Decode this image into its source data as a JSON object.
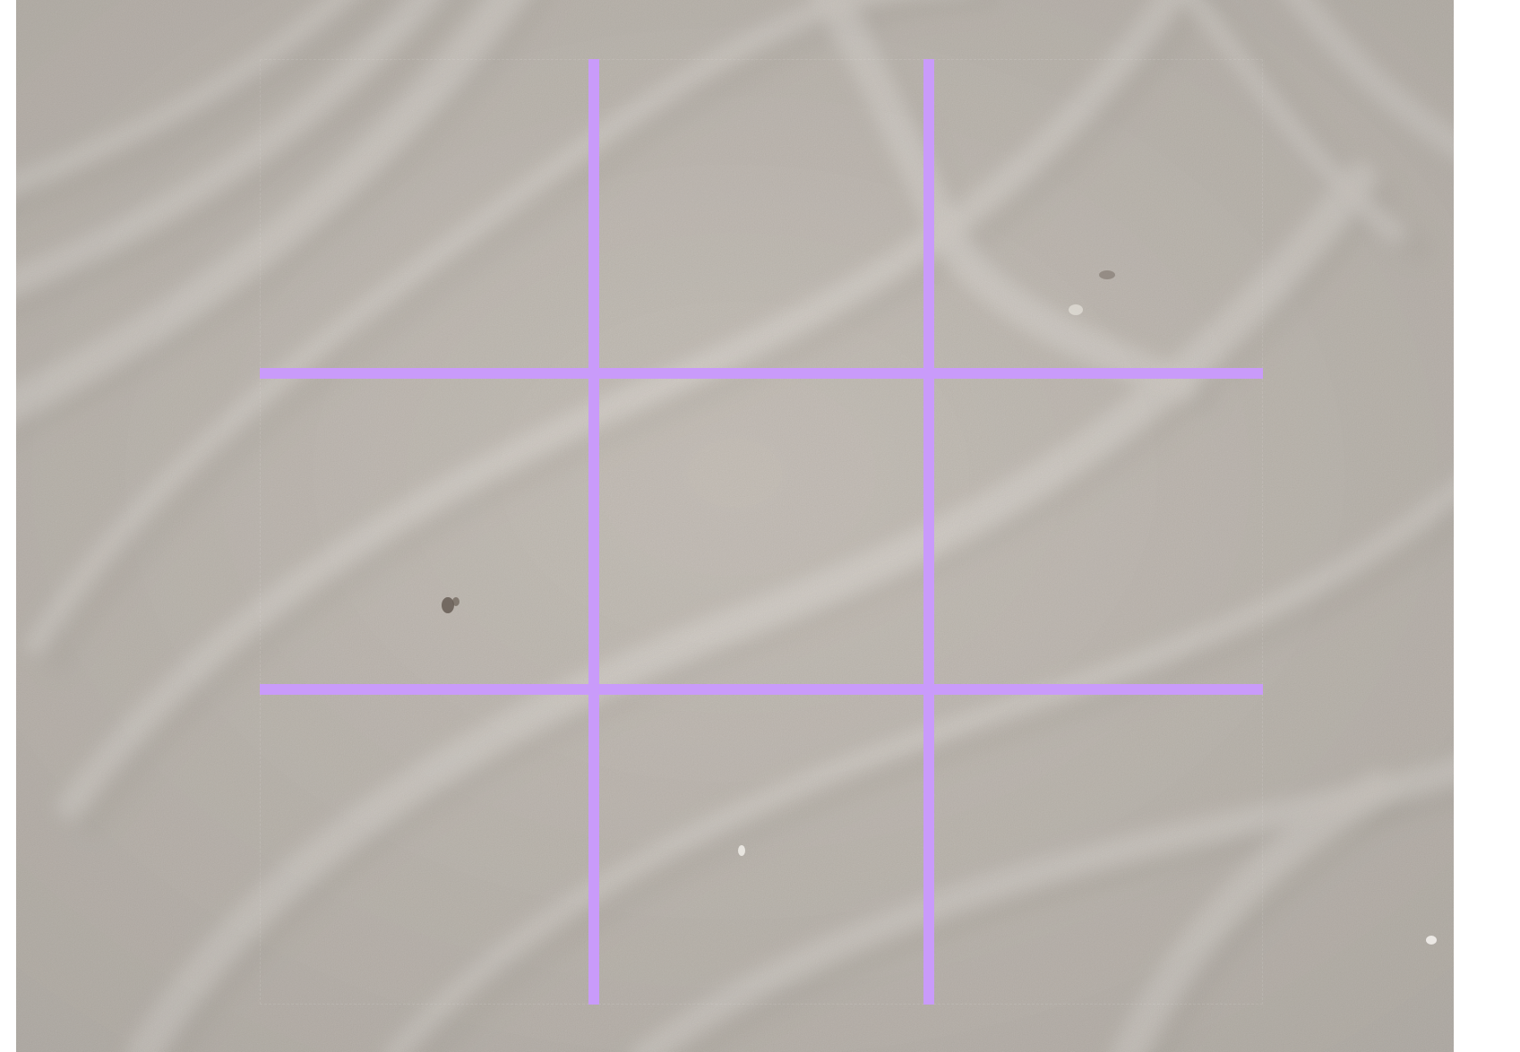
{
  "board": {
    "rows": 3,
    "columns": 3,
    "cells": [
      [
        "",
        "",
        ""
      ],
      [
        "",
        "",
        ""
      ],
      [
        "",
        "",
        ""
      ]
    ]
  },
  "colors": {
    "grid_lines": "#c99bfa",
    "sand_base": "#c5bfb7",
    "sand_dark": "#a9a29a",
    "sand_light": "#e9e5df",
    "page_background": "#ffffff"
  },
  "background": {
    "texture": "sand-ripples",
    "icon": "sand-texture"
  }
}
